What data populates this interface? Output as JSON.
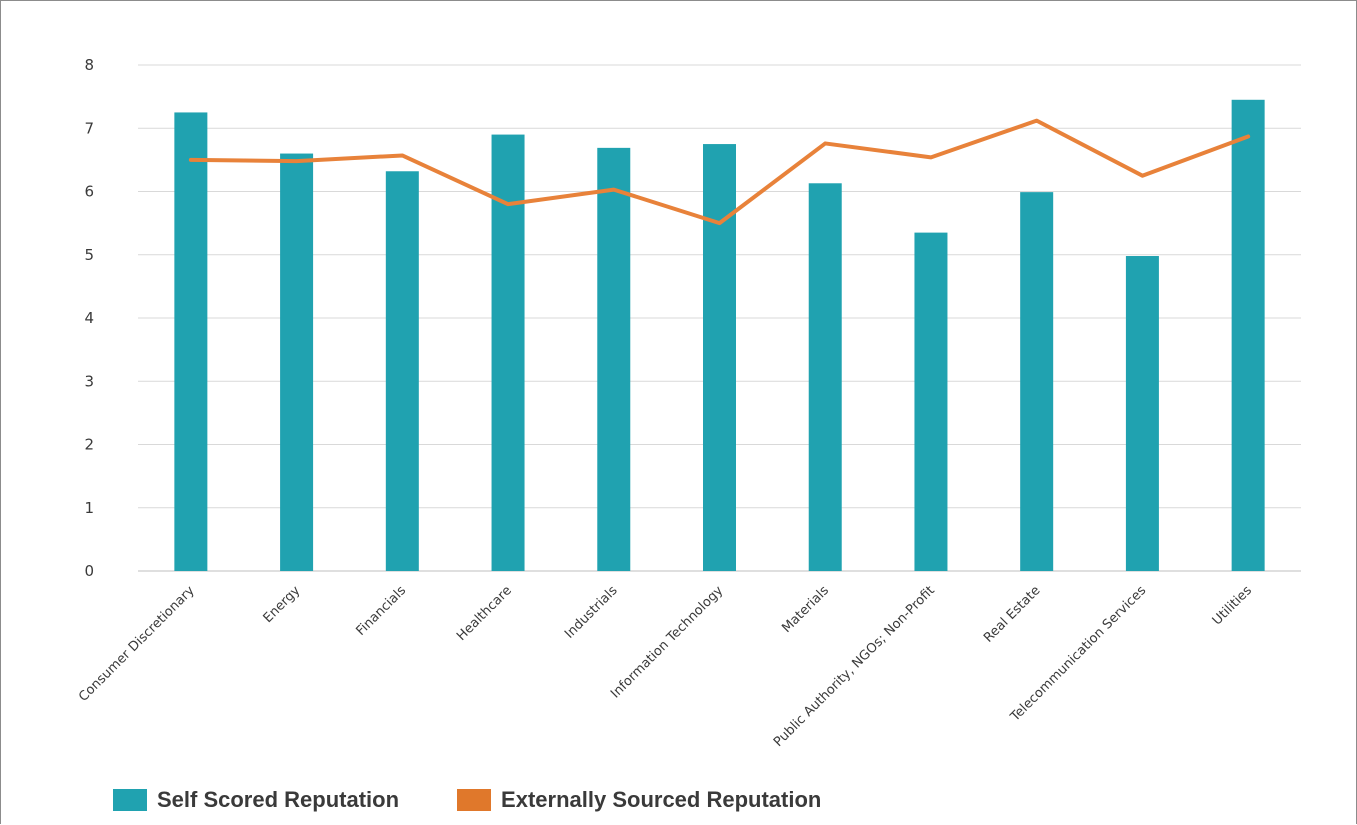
{
  "colors": {
    "bar": "#20a2b0",
    "line": "#e8823a",
    "legend_line": "#e0782b",
    "grid": "#d9d9d9",
    "axis": "#bfbfbf"
  },
  "legend": {
    "bar_label": "Self Scored Reputation",
    "line_label": "Externally Sourced Reputation"
  },
  "chart_data": {
    "type": "bar",
    "title": "",
    "xlabel": "",
    "ylabel": "",
    "ylim": [
      0,
      8
    ],
    "yticks": [
      "0",
      "1",
      "2",
      "3",
      "4",
      "5",
      "6",
      "7",
      "8"
    ],
    "grid": true,
    "legend_position": "bottom-left",
    "categories": [
      "Consumer Discretionary",
      "Energy",
      "Financials",
      "Healthcare",
      "Industrials",
      "Information Technology",
      "Materials",
      "Public Authority, NGOs; Non-Profit",
      "Real Estate",
      "Telecommunication Services",
      "Utilities"
    ],
    "series": [
      {
        "name": "Self Scored Reputation",
        "type": "bar",
        "values": [
          7.25,
          6.6,
          6.32,
          6.9,
          6.69,
          6.75,
          6.13,
          5.35,
          5.99,
          4.98,
          7.45
        ]
      },
      {
        "name": "Externally Sourced Reputation",
        "type": "line",
        "values": [
          6.5,
          6.48,
          6.57,
          5.8,
          6.03,
          5.5,
          6.76,
          6.54,
          7.12,
          6.25,
          6.87
        ]
      }
    ]
  }
}
